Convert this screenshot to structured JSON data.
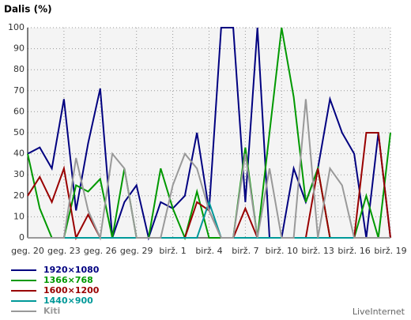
{
  "chart_data": {
    "type": "line",
    "title": "Dalis (%)",
    "source": "LiveInternet",
    "categories": [
      "geg. 20",
      null,
      null,
      "geg. 23",
      null,
      null,
      "geg. 26",
      null,
      null,
      "geg. 29",
      null,
      null,
      "birž. 1",
      null,
      null,
      "birž. 4",
      null,
      null,
      "birž. 7",
      null,
      null,
      "birž. 10",
      null,
      null,
      "birž. 13",
      null,
      null,
      "birž. 16",
      null,
      null,
      "birž. 19"
    ],
    "ylim": [
      0,
      100
    ],
    "yticks": [
      0,
      10,
      20,
      30,
      40,
      50,
      60,
      70,
      80,
      90,
      100
    ],
    "grid": true,
    "legend": "bottom-left",
    "series": [
      {
        "name": "1920×1080",
        "color": "#000080",
        "values": [
          40,
          43,
          33,
          66,
          13,
          45,
          71,
          0,
          17,
          25,
          0,
          17,
          14,
          20,
          50,
          13,
          100,
          100,
          17,
          100,
          0,
          0,
          33,
          17,
          33,
          66,
          50,
          40,
          0,
          50,
          0
        ]
      },
      {
        "name": "1366×768",
        "color": "#009900",
        "values": [
          40,
          14,
          0,
          0,
          25,
          22,
          28,
          0,
          33,
          0,
          0,
          33,
          14,
          0,
          22,
          0,
          0,
          0,
          43,
          0,
          50,
          100,
          67,
          17,
          33,
          0,
          0,
          0,
          20,
          0,
          50
        ]
      },
      {
        "name": "1600×1200",
        "color": "#990000",
        "values": [
          20,
          29,
          17,
          33,
          0,
          11,
          0,
          0,
          0,
          0,
          0,
          0,
          0,
          0,
          17,
          13,
          0,
          0,
          14,
          0,
          0,
          0,
          0,
          0,
          33,
          0,
          0,
          0,
          50,
          50,
          0
        ]
      },
      {
        "name": "1440×900",
        "color": "#009999",
        "values": [
          0,
          0,
          0,
          0,
          0,
          0,
          0,
          0,
          0,
          0,
          0,
          0,
          0,
          0,
          0,
          17,
          0,
          0,
          0,
          0,
          0,
          0,
          0,
          0,
          0,
          0,
          0,
          0,
          0,
          0,
          0
        ]
      },
      {
        "name": "Kiti",
        "color": "#999999",
        "values": [
          0,
          0,
          0,
          0,
          38,
          13,
          0,
          40,
          33,
          0,
          0,
          0,
          25,
          40,
          33,
          13,
          0,
          0,
          40,
          0,
          33,
          0,
          0,
          66,
          0,
          33,
          25,
          0,
          0,
          0,
          0
        ]
      }
    ]
  }
}
